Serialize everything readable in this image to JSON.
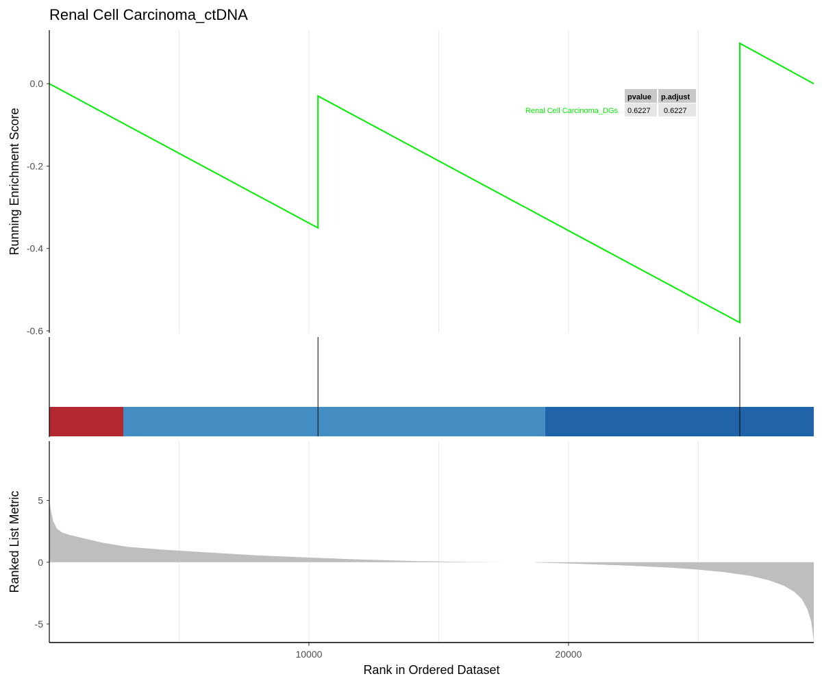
{
  "chart_data": {
    "type": "line",
    "title": "Renal Cell Carcinoma_ctDNA",
    "x_max": 29450,
    "xlabel": "Rank in Ordered Dataset",
    "x_ticks": [
      10000,
      20000
    ],
    "x_tick_labels": [
      "10000",
      "20000"
    ],
    "x_gridlines": [
      5000,
      10000,
      15000,
      20000,
      25000
    ],
    "running_es": {
      "ylabel": "Running Enrichment Score",
      "ylim": [
        -0.605,
        0.13
      ],
      "y_ticks": [
        0.0,
        -0.2,
        -0.4,
        -0.6
      ],
      "y_tick_labels": [
        "0.0",
        "-0.2",
        "-0.4",
        "-0.6"
      ],
      "color": "#00ee00",
      "series": [
        {
          "name": "Renal Cell Carcinoma_DGs",
          "x": [
            0,
            10350,
            10350,
            26600,
            26600,
            29450
          ],
          "y": [
            0.0,
            -0.35,
            -0.03,
            -0.58,
            0.098,
            0.0
          ]
        }
      ]
    },
    "hits": [
      10350,
      26600
    ],
    "rank_bands": [
      {
        "start": 0,
        "end": 2850,
        "color": "#b2282f"
      },
      {
        "start": 2850,
        "end": 19100,
        "color": "#448dc3"
      },
      {
        "start": 19100,
        "end": 29450,
        "color": "#2063a8"
      }
    ],
    "ranked_metric": {
      "ylabel": "Ranked List Metric",
      "ylim": [
        -6.5,
        9.8
      ],
      "y_ticks": [
        5,
        0,
        -5
      ],
      "y_tick_labels": [
        "5",
        "0",
        "-5"
      ],
      "fill": "#bebebe",
      "x": [
        0,
        50,
        150,
        300,
        500,
        800,
        1200,
        2000,
        3000,
        4500,
        6000,
        8000,
        10000,
        12000,
        14000,
        16000,
        17000,
        17700,
        17700,
        18700,
        18700,
        20000,
        22000,
        24000,
        25000,
        26000,
        27000,
        27700,
        28300,
        28700,
        29000,
        29200,
        29350,
        29450
      ],
      "y": [
        4.9,
        4.3,
        3.3,
        2.7,
        2.4,
        2.2,
        2.0,
        1.6,
        1.25,
        1.0,
        0.8,
        0.55,
        0.38,
        0.22,
        0.1,
        0.03,
        0.01,
        0.0,
        0.0,
        0.0,
        -0.02,
        -0.1,
        -0.25,
        -0.45,
        -0.6,
        -0.8,
        -1.1,
        -1.45,
        -1.9,
        -2.4,
        -3.0,
        -3.8,
        -4.8,
        -6.4
      ]
    },
    "stats_table": {
      "headers": [
        "pvalue",
        "p.adjust"
      ],
      "rows": [
        {
          "name": "Renal Cell Carcinoma_DGs",
          "values": [
            "0.6227",
            "0.6227"
          ]
        }
      ]
    }
  }
}
